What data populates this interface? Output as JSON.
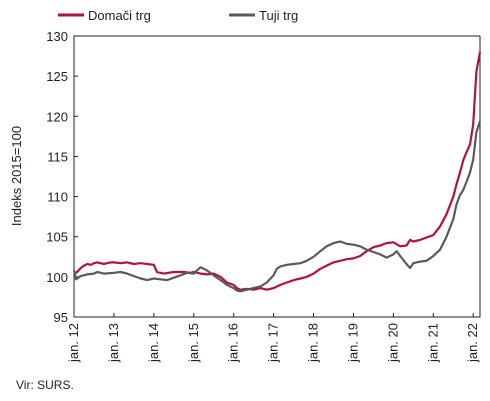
{
  "chart_data": {
    "type": "line",
    "title": "",
    "xlabel": "",
    "ylabel": "Indeks 2015=100",
    "ylim": [
      95,
      130
    ],
    "yticks": [
      "95",
      "100",
      "105",
      "110",
      "115",
      "120",
      "125",
      "130"
    ],
    "xlim": [
      2012,
      2022.17
    ],
    "xticks": [
      "jan. 12",
      "jan. 13",
      "jan. 14",
      "jan. 15",
      "jan. 16",
      "jan. 17",
      "jan. 18",
      "jan. 19",
      "jan. 20",
      "jan. 21",
      "jan. 22"
    ],
    "grid": false,
    "legend_position": "top-left",
    "series": [
      {
        "name": "Domači trg",
        "color": "#b3123a",
        "points": [
          [
            2012.0,
            100.4
          ],
          [
            2012.08,
            100.6
          ],
          [
            2012.17,
            101.1
          ],
          [
            2012.25,
            101.4
          ],
          [
            2012.33,
            101.6
          ],
          [
            2012.42,
            101.5
          ],
          [
            2012.5,
            101.7
          ],
          [
            2012.58,
            101.8
          ],
          [
            2012.67,
            101.7
          ],
          [
            2012.75,
            101.6
          ],
          [
            2012.83,
            101.7
          ],
          [
            2012.92,
            101.8
          ],
          [
            2013.0,
            101.8
          ],
          [
            2013.17,
            101.7
          ],
          [
            2013.33,
            101.8
          ],
          [
            2013.5,
            101.6
          ],
          [
            2013.67,
            101.7
          ],
          [
            2013.83,
            101.6
          ],
          [
            2014.0,
            101.5
          ],
          [
            2014.08,
            100.6
          ],
          [
            2014.25,
            100.4
          ],
          [
            2014.5,
            100.6
          ],
          [
            2014.75,
            100.6
          ],
          [
            2014.92,
            100.5
          ],
          [
            2015.0,
            100.6
          ],
          [
            2015.17,
            100.4
          ],
          [
            2015.33,
            100.3
          ],
          [
            2015.5,
            100.4
          ],
          [
            2015.67,
            100.0
          ],
          [
            2015.83,
            99.3
          ],
          [
            2016.0,
            99.0
          ],
          [
            2016.08,
            98.6
          ],
          [
            2016.17,
            98.4
          ],
          [
            2016.33,
            98.5
          ],
          [
            2016.5,
            98.4
          ],
          [
            2016.67,
            98.6
          ],
          [
            2016.83,
            98.4
          ],
          [
            2017.0,
            98.6
          ],
          [
            2017.17,
            99.0
          ],
          [
            2017.33,
            99.3
          ],
          [
            2017.5,
            99.6
          ],
          [
            2017.67,
            99.8
          ],
          [
            2017.83,
            100.0
          ],
          [
            2018.0,
            100.4
          ],
          [
            2018.17,
            101.0
          ],
          [
            2018.33,
            101.4
          ],
          [
            2018.5,
            101.8
          ],
          [
            2018.67,
            102.0
          ],
          [
            2018.83,
            102.2
          ],
          [
            2019.0,
            102.3
          ],
          [
            2019.17,
            102.6
          ],
          [
            2019.33,
            103.2
          ],
          [
            2019.5,
            103.7
          ],
          [
            2019.67,
            103.9
          ],
          [
            2019.83,
            104.2
          ],
          [
            2020.0,
            104.3
          ],
          [
            2020.17,
            103.8
          ],
          [
            2020.33,
            103.9
          ],
          [
            2020.42,
            104.6
          ],
          [
            2020.5,
            104.4
          ],
          [
            2020.67,
            104.6
          ],
          [
            2020.83,
            104.9
          ],
          [
            2021.0,
            105.2
          ],
          [
            2021.17,
            106.3
          ],
          [
            2021.33,
            107.8
          ],
          [
            2021.5,
            110.0
          ],
          [
            2021.58,
            111.5
          ],
          [
            2021.67,
            113.0
          ],
          [
            2021.75,
            114.5
          ],
          [
            2021.83,
            115.5
          ],
          [
            2021.92,
            116.5
          ],
          [
            2022.0,
            119.0
          ],
          [
            2022.08,
            125.6
          ],
          [
            2022.17,
            128.0
          ]
        ]
      },
      {
        "name": "Tuji trg",
        "color": "#5a5a5a",
        "points": [
          [
            2012.0,
            100.8
          ],
          [
            2012.05,
            99.7
          ],
          [
            2012.17,
            100.1
          ],
          [
            2012.33,
            100.3
          ],
          [
            2012.5,
            100.4
          ],
          [
            2012.58,
            100.6
          ],
          [
            2012.75,
            100.4
          ],
          [
            2013.0,
            100.5
          ],
          [
            2013.17,
            100.6
          ],
          [
            2013.33,
            100.4
          ],
          [
            2013.5,
            100.1
          ],
          [
            2013.67,
            99.8
          ],
          [
            2013.83,
            99.6
          ],
          [
            2014.0,
            99.8
          ],
          [
            2014.17,
            99.7
          ],
          [
            2014.33,
            99.6
          ],
          [
            2014.5,
            99.9
          ],
          [
            2014.67,
            100.2
          ],
          [
            2014.83,
            100.5
          ],
          [
            2015.0,
            100.4
          ],
          [
            2015.08,
            100.8
          ],
          [
            2015.17,
            101.2
          ],
          [
            2015.33,
            100.8
          ],
          [
            2015.5,
            100.2
          ],
          [
            2015.67,
            99.6
          ],
          [
            2015.83,
            99.0
          ],
          [
            2016.0,
            98.6
          ],
          [
            2016.08,
            98.3
          ],
          [
            2016.17,
            98.2
          ],
          [
            2016.33,
            98.4
          ],
          [
            2016.5,
            98.6
          ],
          [
            2016.67,
            98.8
          ],
          [
            2016.83,
            99.3
          ],
          [
            2017.0,
            100.2
          ],
          [
            2017.08,
            101.0
          ],
          [
            2017.17,
            101.3
          ],
          [
            2017.33,
            101.5
          ],
          [
            2017.5,
            101.6
          ],
          [
            2017.67,
            101.7
          ],
          [
            2017.83,
            102.0
          ],
          [
            2018.0,
            102.5
          ],
          [
            2018.17,
            103.2
          ],
          [
            2018.33,
            103.8
          ],
          [
            2018.5,
            104.2
          ],
          [
            2018.67,
            104.4
          ],
          [
            2018.83,
            104.1
          ],
          [
            2019.0,
            104.0
          ],
          [
            2019.17,
            103.8
          ],
          [
            2019.33,
            103.4
          ],
          [
            2019.5,
            103.1
          ],
          [
            2019.67,
            102.8
          ],
          [
            2019.83,
            102.4
          ],
          [
            2020.0,
            102.8
          ],
          [
            2020.08,
            103.2
          ],
          [
            2020.17,
            102.6
          ],
          [
            2020.33,
            101.6
          ],
          [
            2020.42,
            101.1
          ],
          [
            2020.5,
            101.7
          ],
          [
            2020.67,
            101.9
          ],
          [
            2020.83,
            102.0
          ],
          [
            2021.0,
            102.6
          ],
          [
            2021.17,
            103.4
          ],
          [
            2021.33,
            105.0
          ],
          [
            2021.5,
            107.2
          ],
          [
            2021.58,
            109.0
          ],
          [
            2021.67,
            110.2
          ],
          [
            2021.75,
            110.8
          ],
          [
            2021.83,
            111.8
          ],
          [
            2021.92,
            113.0
          ],
          [
            2022.0,
            114.6
          ],
          [
            2022.08,
            118.0
          ],
          [
            2022.17,
            119.4
          ]
        ]
      }
    ]
  },
  "source_text": "Vir: SURS."
}
